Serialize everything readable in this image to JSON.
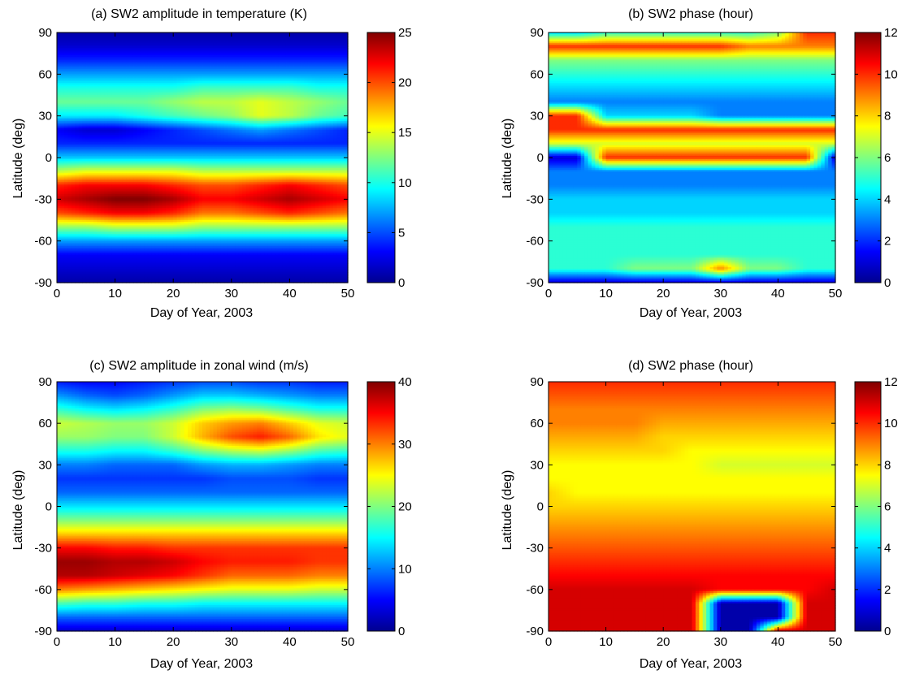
{
  "figure": {
    "panels": [
      {
        "id": "a",
        "title": "(a) SW2 amplitude in temperature (K)",
        "xlabel": "Day of Year, 2003",
        "ylabel": "Latitude (deg)"
      },
      {
        "id": "b",
        "title": "(b) SW2 phase (hour)",
        "xlabel": "Day of Year, 2003",
        "ylabel": "Latitude (deg)"
      },
      {
        "id": "c",
        "title": "(c) SW2 amplitude in zonal wind (m/s)",
        "xlabel": "Day of Year, 2003",
        "ylabel": "Latitude (deg)"
      },
      {
        "id": "d",
        "title": "(d) SW2 phase (hour)",
        "xlabel": "Day of Year, 2003",
        "ylabel": "Latitude (deg)"
      }
    ]
  },
  "chart_data": [
    {
      "type": "heatmap",
      "title": "(a) SW2 amplitude in temperature (K)",
      "xlabel": "Day of Year, 2003",
      "ylabel": "Latitude (deg)",
      "xlim": [
        0,
        50
      ],
      "ylim": [
        -90,
        90
      ],
      "xticks": [
        "0",
        "10",
        "20",
        "30",
        "40",
        "50"
      ],
      "yticks": [
        "-90",
        "-60",
        "-30",
        "0",
        "30",
        "60",
        "90"
      ],
      "colorbar": {
        "range": [
          0,
          25
        ],
        "ticks": [
          "0",
          "5",
          "10",
          "15",
          "20",
          "25"
        ],
        "colormap": "jet"
      },
      "x": [
        0,
        5,
        10,
        15,
        20,
        25,
        30,
        35,
        40,
        45,
        50
      ],
      "y": [
        90,
        80,
        70,
        60,
        50,
        40,
        30,
        20,
        10,
        0,
        -10,
        -20,
        -30,
        -40,
        -50,
        -60,
        -70,
        -80,
        -90
      ],
      "z": [
        [
          1,
          1,
          1,
          1,
          1,
          1,
          1,
          1,
          1,
          1,
          1
        ],
        [
          2,
          2,
          2,
          2,
          2,
          2,
          2,
          2,
          2,
          2,
          2
        ],
        [
          4,
          4,
          4,
          4,
          4,
          4,
          4,
          4,
          4,
          4,
          4
        ],
        [
          7,
          7,
          7,
          7,
          7,
          7,
          7,
          7,
          7,
          7,
          7
        ],
        [
          10,
          10,
          10,
          10,
          10,
          11,
          11,
          11,
          11,
          10,
          10
        ],
        [
          12,
          12,
          12,
          12,
          13,
          14,
          14,
          15,
          14,
          13,
          12
        ],
        [
          9,
          9,
          9,
          10,
          11,
          12,
          13,
          15,
          14,
          12,
          11
        ],
        [
          3,
          2,
          2,
          3,
          4,
          5,
          6,
          7,
          6,
          5,
          4
        ],
        [
          4,
          4,
          4,
          4,
          4,
          4,
          4,
          4,
          4,
          4,
          4
        ],
        [
          8,
          8,
          8,
          8,
          8,
          8,
          8,
          8,
          8,
          8,
          8
        ],
        [
          14,
          15,
          15,
          15,
          15,
          14,
          14,
          14,
          14,
          14,
          14
        ],
        [
          21,
          22,
          22,
          22,
          21,
          20,
          20,
          21,
          22,
          21,
          20
        ],
        [
          23,
          24,
          25,
          25,
          24,
          22,
          22,
          23,
          24,
          23,
          22
        ],
        [
          20,
          21,
          22,
          22,
          21,
          19,
          19,
          20,
          21,
          20,
          19
        ],
        [
          13,
          13,
          14,
          14,
          14,
          13,
          13,
          13,
          13,
          13,
          13
        ],
        [
          7,
          7,
          7,
          7,
          7,
          7,
          7,
          7,
          7,
          7,
          7
        ],
        [
          3,
          3,
          3,
          3,
          3,
          3,
          3,
          3,
          3,
          3,
          3
        ],
        [
          2,
          2,
          2,
          2,
          2,
          2,
          2,
          2,
          2,
          2,
          2
        ],
        [
          1,
          1,
          1,
          1,
          1,
          1,
          1,
          1,
          1,
          1,
          1
        ]
      ]
    },
    {
      "type": "heatmap",
      "title": "(b) SW2 phase (hour)",
      "xlabel": "Day of Year, 2003",
      "ylabel": "Latitude (deg)",
      "xlim": [
        0,
        50
      ],
      "ylim": [
        -90,
        90
      ],
      "xticks": [
        "0",
        "10",
        "20",
        "30",
        "40",
        "50"
      ],
      "yticks": [
        "-90",
        "-60",
        "-30",
        "0",
        "30",
        "60",
        "90"
      ],
      "colorbar": {
        "range": [
          0,
          12
        ],
        "ticks": [
          "0",
          "2",
          "4",
          "6",
          "8",
          "10",
          "12"
        ],
        "colormap": "jet"
      },
      "x": [
        0,
        5,
        10,
        15,
        20,
        25,
        30,
        35,
        40,
        45,
        50
      ],
      "y": [
        90,
        80,
        70,
        60,
        50,
        40,
        30,
        20,
        10,
        0,
        -10,
        -20,
        -30,
        -40,
        -50,
        -60,
        -70,
        -80,
        -90
      ],
      "z": [
        [
          4,
          4,
          5,
          5,
          5,
          5,
          5,
          5,
          6,
          10,
          10
        ],
        [
          10,
          10,
          10,
          10,
          10,
          10,
          10,
          9,
          9,
          9,
          9
        ],
        [
          6,
          6,
          6,
          6,
          6,
          6,
          6,
          6,
          6,
          6,
          6
        ],
        [
          5,
          5,
          5,
          5,
          5,
          5,
          5,
          5,
          5,
          5,
          5
        ],
        [
          4,
          4,
          4,
          4,
          4,
          4,
          4,
          4,
          4,
          4,
          4
        ],
        [
          3,
          3,
          3,
          3,
          3,
          3,
          3,
          3,
          3,
          3,
          3
        ],
        [
          10,
          10,
          4,
          4,
          4,
          4,
          3,
          3,
          3,
          3,
          3
        ],
        [
          10,
          10,
          10,
          10,
          10,
          10,
          10,
          10,
          10,
          10,
          10
        ],
        [
          7,
          7,
          7,
          7,
          7,
          7,
          7,
          7,
          7,
          7,
          7
        ],
        [
          1,
          1,
          10,
          10,
          10,
          10,
          10,
          10,
          10,
          10,
          1
        ],
        [
          3,
          3,
          3,
          3,
          3,
          3,
          3,
          3,
          3,
          3,
          3
        ],
        [
          3,
          3,
          3,
          3,
          3,
          3,
          3,
          3,
          3,
          3,
          3
        ],
        [
          4,
          4,
          4,
          4,
          4,
          4,
          4,
          4,
          4,
          4,
          4
        ],
        [
          4,
          4,
          4,
          4,
          4,
          4,
          4,
          4,
          4,
          4,
          4
        ],
        [
          5,
          5,
          5,
          5,
          5,
          5,
          5,
          5,
          5,
          5,
          5
        ],
        [
          5,
          5,
          5,
          5,
          5,
          5,
          5,
          5,
          5,
          5,
          5
        ],
        [
          5,
          5,
          5,
          5,
          5,
          5,
          5,
          5,
          5,
          5,
          5
        ],
        [
          5,
          5,
          5,
          6,
          6,
          6,
          9,
          6,
          6,
          5,
          5
        ],
        [
          1,
          1,
          1,
          1,
          1,
          1,
          1,
          1,
          1,
          1,
          1
        ]
      ]
    },
    {
      "type": "heatmap",
      "title": "(c) SW2 amplitude in zonal wind (m/s)",
      "xlabel": "Day of Year, 2003",
      "ylabel": "Latitude (deg)",
      "xlim": [
        0,
        50
      ],
      "ylim": [
        -90,
        90
      ],
      "xticks": [
        "0",
        "10",
        "20",
        "30",
        "40",
        "50"
      ],
      "yticks": [
        "-90",
        "-60",
        "-30",
        "0",
        "30",
        "60",
        "90"
      ],
      "colorbar": {
        "range": [
          0,
          40
        ],
        "ticks": [
          "0",
          "10",
          "20",
          "30",
          "40"
        ],
        "colormap": "jet"
      },
      "x": [
        0,
        5,
        10,
        15,
        20,
        25,
        30,
        35,
        40,
        45,
        50
      ],
      "y": [
        90,
        80,
        70,
        60,
        50,
        40,
        30,
        20,
        10,
        0,
        -10,
        -20,
        -30,
        -40,
        -50,
        -60,
        -70,
        -80,
        -90
      ],
      "z": [
        [
          6,
          5,
          5,
          6,
          7,
          8,
          8,
          7,
          7,
          6,
          6
        ],
        [
          11,
          9,
          8,
          9,
          11,
          13,
          13,
          12,
          11,
          10,
          10
        ],
        [
          17,
          15,
          14,
          15,
          17,
          20,
          21,
          20,
          18,
          16,
          16
        ],
        [
          23,
          22,
          21,
          21,
          23,
          27,
          29,
          30,
          27,
          24,
          23
        ],
        [
          21,
          21,
          20,
          20,
          23,
          28,
          32,
          34,
          31,
          26,
          24
        ],
        [
          16,
          16,
          15,
          15,
          17,
          20,
          22,
          23,
          21,
          18,
          17
        ],
        [
          10,
          10,
          9,
          9,
          9,
          11,
          12,
          12,
          11,
          10,
          10
        ],
        [
          7,
          7,
          7,
          7,
          7,
          7,
          8,
          8,
          8,
          7,
          7
        ],
        [
          9,
          9,
          9,
          9,
          9,
          9,
          9,
          9,
          9,
          9,
          9
        ],
        [
          14,
          14,
          14,
          14,
          14,
          14,
          14,
          14,
          14,
          14,
          14
        ],
        [
          20,
          20,
          20,
          20,
          20,
          20,
          20,
          20,
          20,
          20,
          20
        ],
        [
          27,
          27,
          27,
          27,
          27,
          27,
          27,
          27,
          27,
          27,
          27
        ],
        [
          35,
          35,
          34,
          34,
          33,
          33,
          33,
          33,
          33,
          33,
          33
        ],
        [
          39,
          39,
          38,
          38,
          37,
          35,
          34,
          34,
          34,
          33,
          33
        ],
        [
          38,
          38,
          37,
          36,
          35,
          33,
          31,
          31,
          31,
          30,
          30
        ],
        [
          30,
          29,
          28,
          27,
          26,
          25,
          24,
          24,
          24,
          23,
          23
        ],
        [
          18,
          17,
          17,
          16,
          16,
          15,
          15,
          15,
          15,
          15,
          15
        ],
        [
          9,
          9,
          9,
          9,
          9,
          9,
          9,
          9,
          9,
          9,
          9
        ],
        [
          3,
          3,
          3,
          3,
          3,
          3,
          3,
          3,
          3,
          3,
          3
        ]
      ]
    },
    {
      "type": "heatmap",
      "title": "(d) SW2 phase (hour)",
      "xlabel": "Day of Year, 2003",
      "ylabel": "Latitude (deg)",
      "xlim": [
        0,
        50
      ],
      "ylim": [
        -90,
        90
      ],
      "xticks": [
        "0",
        "10",
        "20",
        "30",
        "40",
        "50"
      ],
      "yticks": [
        "-90",
        "-60",
        "-30",
        "0",
        "30",
        "60",
        "90"
      ],
      "colorbar": {
        "range": [
          0,
          12
        ],
        "ticks": [
          "0",
          "2",
          "4",
          "6",
          "8",
          "10",
          "12"
        ],
        "colormap": "jet"
      },
      "x": [
        0,
        5,
        10,
        15,
        20,
        25,
        30,
        35,
        40,
        45,
        50
      ],
      "y": [
        90,
        80,
        70,
        60,
        50,
        40,
        30,
        20,
        10,
        0,
        -10,
        -20,
        -30,
        -40,
        -50,
        -60,
        -70,
        -80,
        -90
      ],
      "z": [
        [
          10,
          10,
          10,
          10,
          10,
          10,
          10,
          10,
          10,
          10,
          10
        ],
        [
          9.5,
          9.5,
          9.5,
          9.5,
          9.5,
          9.5,
          9.5,
          9.5,
          9.5,
          9.5,
          9.5
        ],
        [
          9,
          9,
          9,
          9,
          9,
          9,
          9,
          9,
          9,
          9,
          9
        ],
        [
          9,
          9,
          9,
          9,
          8.5,
          8.5,
          8.5,
          8.5,
          8.5,
          8.5,
          8.5
        ],
        [
          8.5,
          8.5,
          8.5,
          8.5,
          8,
          8,
          8,
          8,
          8,
          8,
          8
        ],
        [
          8,
          8,
          8,
          8,
          8,
          7.5,
          7.5,
          7.5,
          7.5,
          7.5,
          7.5
        ],
        [
          7.5,
          7.5,
          7.5,
          7.5,
          7.5,
          7.5,
          7,
          7,
          7,
          7,
          7
        ],
        [
          7.5,
          7.5,
          7.5,
          7.5,
          7.5,
          7.5,
          7.5,
          7.5,
          7.5,
          7.5,
          7.5
        ],
        [
          8,
          7.5,
          7.5,
          7.5,
          7.5,
          7.5,
          7.5,
          7.5,
          7.5,
          7.5,
          7.5
        ],
        [
          8,
          8,
          8,
          8,
          8,
          8,
          8,
          8,
          8,
          8,
          8
        ],
        [
          8.5,
          8.5,
          8.5,
          8.5,
          8.5,
          8.5,
          8.5,
          8.5,
          8.5,
          8.5,
          8.5
        ],
        [
          9,
          9,
          9,
          9,
          9,
          9,
          9,
          9,
          9,
          9,
          9
        ],
        [
          9.5,
          9.5,
          9.5,
          9.5,
          9.5,
          9.5,
          9.5,
          9.5,
          9.5,
          9.5,
          9.5
        ],
        [
          10,
          10,
          10,
          10,
          10,
          10,
          10,
          10,
          10,
          10,
          10
        ],
        [
          10.5,
          10.5,
          10.5,
          10.5,
          10.5,
          10.5,
          10.5,
          10.5,
          10.5,
          10.5,
          10.5
        ],
        [
          11,
          11,
          11,
          11,
          11,
          11,
          10.5,
          10.5,
          10.5,
          10.5,
          11
        ],
        [
          11,
          11,
          11,
          11,
          11,
          11,
          0.5,
          0.5,
          0.5,
          11,
          11
        ],
        [
          11,
          11,
          11,
          11,
          11,
          11,
          0.5,
          0.5,
          0.5,
          11,
          11
        ],
        [
          11,
          11,
          11,
          11,
          11,
          11,
          0.5,
          0.5,
          11,
          11,
          11
        ]
      ]
    }
  ]
}
